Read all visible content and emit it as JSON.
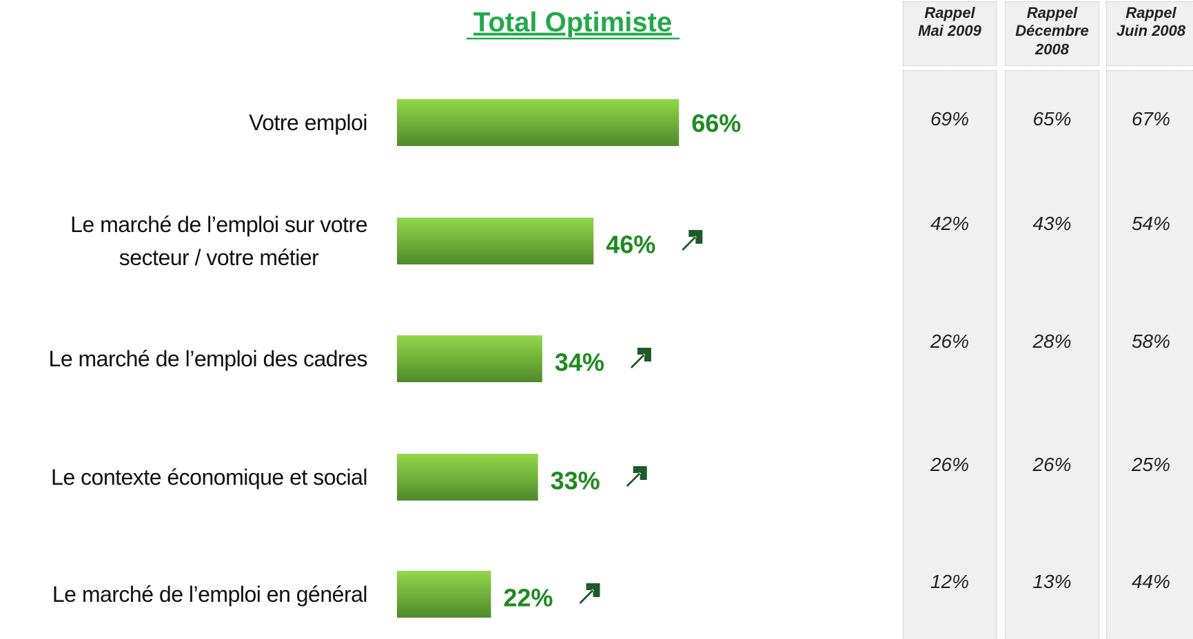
{
  "chart_data": {
    "type": "bar",
    "orientation": "horizontal",
    "title": "Total Optimiste",
    "categories": [
      "Votre emploi",
      "Le marché de l’emploi sur votre\nsecteur / votre métier",
      "Le marché de l’emploi des cadres",
      "Le contexte économique et social",
      "Le marché de l’emploi en général"
    ],
    "values": [
      66,
      46,
      34,
      33,
      22
    ],
    "value_labels": [
      "66%",
      "46%",
      "34%",
      "33%",
      "22%"
    ],
    "trend_up": [
      false,
      true,
      true,
      true,
      true
    ],
    "xlim": [
      0,
      100
    ],
    "color": "#6fb23a",
    "label_color": "#1f8a1f",
    "arrow_color": "#1e5b2a"
  },
  "comparison": {
    "columns": [
      {
        "header": "Rappel\nMai 2009",
        "values": [
          "69%",
          "42%",
          "26%",
          "26%",
          "12%"
        ]
      },
      {
        "header": "Rappel\nDécembre\n2008",
        "values": [
          "65%",
          "43%",
          "28%",
          "26%",
          "13%"
        ]
      },
      {
        "header": "Rappel\nJuin 2008",
        "values": [
          "67%",
          "54%",
          "58%",
          "25%",
          "44%"
        ]
      }
    ]
  }
}
